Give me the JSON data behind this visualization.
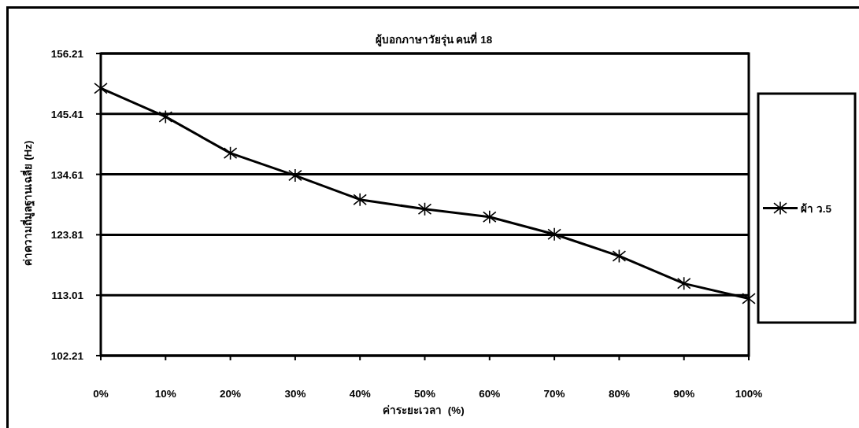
{
  "chart_data": {
    "type": "line",
    "title": "ผู้บอกภาษาวัยรุ่น คนที่ 18",
    "xlabel": "ค่าระยะเวลา  (%)",
    "ylabel": "ค่าความถี่มูลฐานเฉลี่ย (Hz)",
    "categories": [
      "0%",
      "10%",
      "20%",
      "30%",
      "40%",
      "50%",
      "60%",
      "70%",
      "80%",
      "90%",
      "100%"
    ],
    "series": [
      {
        "name": "ผ้า ว.5",
        "color": "#000000",
        "values": [
          150.0,
          144.9,
          138.4,
          134.4,
          130.1,
          128.4,
          127.0,
          123.9,
          120.0,
          115.1,
          112.4
        ]
      }
    ],
    "ylim": [
      102.21,
      156.21
    ],
    "yticks": [
      102.21,
      113.01,
      123.81,
      134.61,
      145.41,
      156.21
    ],
    "grid": "y",
    "legend": "right",
    "marker": "cross",
    "line_style": "solid"
  }
}
